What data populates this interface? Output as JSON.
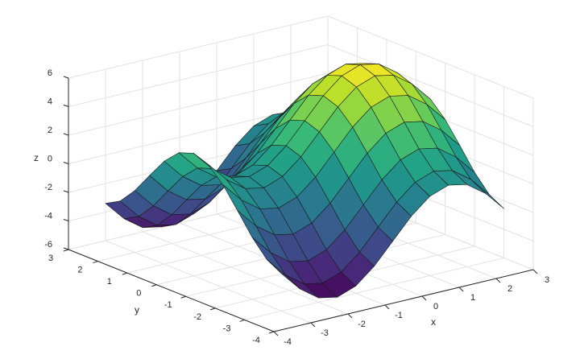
{
  "chart_data": {
    "type": "surface",
    "x": [
      -3,
      -2.5,
      -2,
      -1.5,
      -1,
      -0.5,
      0,
      0.5,
      1,
      1.5,
      2,
      2.5,
      3
    ],
    "y": [
      -3,
      -2.5,
      -2,
      -1.5,
      -1,
      -0.5,
      0,
      0.5,
      1,
      1.5,
      2,
      2.5,
      3
    ],
    "z": [
      [
        -3.39,
        -4.77,
        -5.7,
        -5.96,
        -5.49,
        -4.41,
        -2.97,
        -1.53,
        -0.45,
        0.02,
        -0.24,
        -1.17,
        -2.55
      ],
      [
        -2.82,
        -4.2,
        -5.13,
        -5.39,
        -4.92,
        -3.84,
        -2.4,
        -0.96,
        0.12,
        0.59,
        0.33,
        -0.6,
        -1.98
      ],
      [
        -1.67,
        -3.05,
        -3.98,
        -4.24,
        -3.77,
        -2.69,
        -1.25,
        0.19,
        1.27,
        1.74,
        1.48,
        0.55,
        -0.83
      ],
      [
        -0.21,
        -1.59,
        -2.52,
        -2.78,
        -2.31,
        -1.23,
        0.21,
        1.65,
        2.73,
        3.2,
        2.94,
        2.01,
        0.63
      ],
      [
        1.2,
        -0.18,
        -1.11,
        -1.37,
        -0.9,
        0.18,
        1.62,
        3.06,
        4.14,
        4.61,
        4.35,
        3.42,
        2.04
      ],
      [
        2.21,
        0.83,
        -0.1,
        -0.36,
        0.11,
        1.19,
        2.63,
        4.07,
        5.15,
        5.62,
        5.36,
        4.43,
        3.05
      ],
      [
        2.58,
        1.2,
        0.27,
        0.01,
        0.48,
        1.56,
        3,
        4.44,
        5.52,
        5.99,
        5.73,
        4.8,
        3.42
      ],
      [
        2.21,
        0.83,
        -0.1,
        -0.36,
        0.11,
        1.19,
        2.63,
        4.07,
        5.15,
        5.62,
        5.36,
        4.43,
        3.05
      ],
      [
        1.2,
        -0.18,
        -1.11,
        -1.37,
        -0.9,
        0.18,
        1.62,
        3.06,
        4.14,
        4.61,
        4.35,
        3.42,
        2.04
      ],
      [
        -0.21,
        -1.59,
        -2.52,
        -2.78,
        -2.31,
        -1.23,
        0.21,
        1.65,
        2.73,
        3.2,
        2.94,
        2.01,
        0.63
      ],
      [
        -1.67,
        -3.05,
        -3.98,
        -4.24,
        -3.77,
        -2.69,
        -1.25,
        0.19,
        1.27,
        1.74,
        1.48,
        0.55,
        -0.83
      ],
      [
        -2.82,
        -4.2,
        -5.13,
        -5.39,
        -4.92,
        -3.84,
        -2.4,
        -0.96,
        0.12,
        0.59,
        0.33,
        -0.6,
        -1.98
      ],
      [
        -3.39,
        -4.77,
        -5.7,
        -5.96,
        -5.49,
        -4.41,
        -2.97,
        -1.53,
        -0.45,
        0.02,
        -0.24,
        -1.17,
        -2.55
      ]
    ],
    "xlim": [
      -4,
      3
    ],
    "ylim": [
      -4,
      3
    ],
    "zlim": [
      -6,
      6
    ],
    "xticks": [
      -4,
      -3,
      -2,
      -1,
      0,
      1,
      2,
      3
    ],
    "yticks": [
      -4,
      -3,
      -2,
      -1,
      0,
      1,
      2,
      3
    ],
    "zticks": [
      -6,
      -4,
      -2,
      0,
      2,
      4,
      6
    ],
    "xlabel": "x",
    "ylabel": "y",
    "zlabel": "z",
    "grid": true,
    "edgecolor": "#1a1a1a",
    "colormap": [
      "#440154",
      "#482878",
      "#3e4a89",
      "#31688e",
      "#26828e",
      "#1f9e89",
      "#35b779",
      "#6ece58",
      "#b5de2b",
      "#fde725"
    ]
  }
}
